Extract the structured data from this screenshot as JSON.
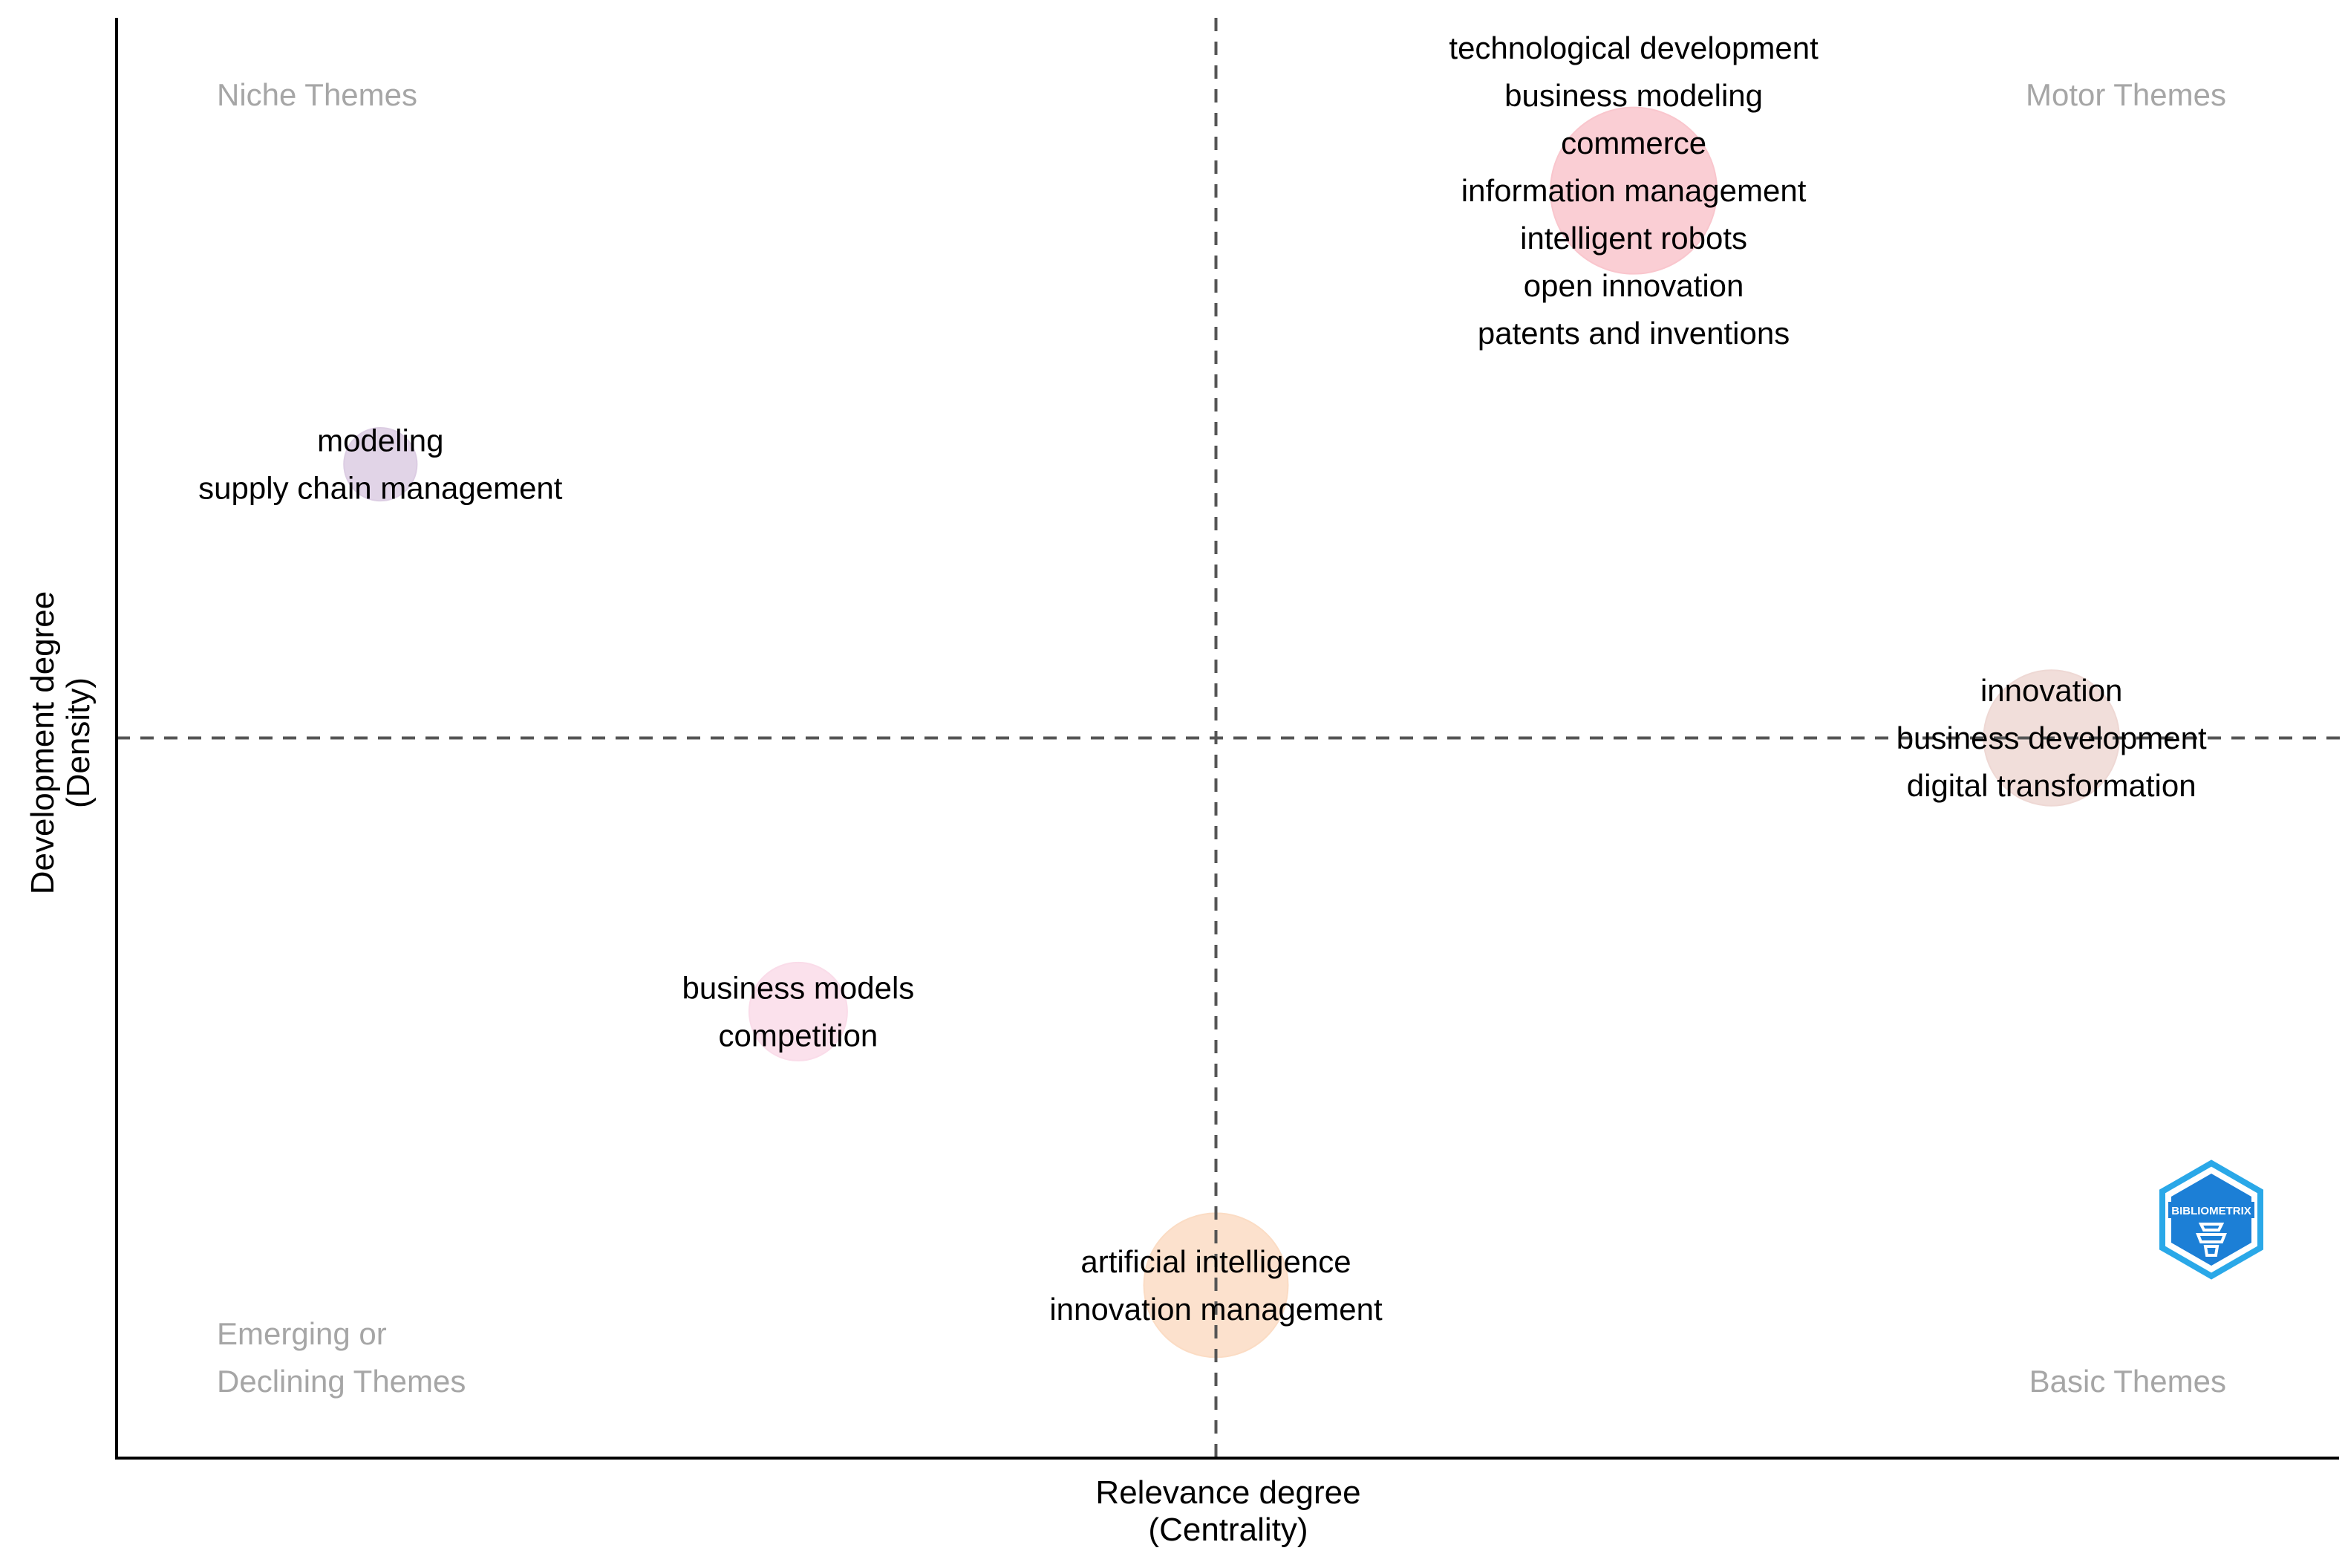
{
  "chart_data": {
    "type": "scatter",
    "title": "",
    "xlabel": "Relevance degree",
    "xlabel_sub": "(Centrality)",
    "ylabel": "Development degree",
    "ylabel_sub": "(Density)",
    "xlim": [
      0,
      1
    ],
    "ylim": [
      0,
      1
    ],
    "x_reference": 0.5,
    "y_reference": 0.5,
    "grid": false,
    "quadrants": {
      "top_left": "Niche Themes",
      "top_right": "Motor Themes",
      "bottom_left_line1": "Emerging or",
      "bottom_left_line2": "Declining Themes",
      "bottom_right": "Basic Themes"
    },
    "clusters": [
      {
        "name": "commerce",
        "x": 0.69,
        "y": 0.88,
        "size": 1.0,
        "color": "#f9c6cd",
        "labels": [
          "technological development",
          "business modeling",
          "commerce",
          "information management",
          "intelligent robots",
          "open innovation",
          "patents and inventions"
        ]
      },
      {
        "name": "modeling",
        "x": 0.12,
        "y": 0.69,
        "size": 0.1,
        "color": "#dccde3",
        "labels": [
          "modeling",
          "supply chain management"
        ]
      },
      {
        "name": "innovation",
        "x": 0.88,
        "y": 0.5,
        "size": 0.6,
        "color": "#eed8d4",
        "labels": [
          "innovation",
          "business development",
          "digital transformation"
        ]
      },
      {
        "name": "business models",
        "x": 0.31,
        "y": 0.31,
        "size": 0.25,
        "color": "#fadce9",
        "labels": [
          "business models",
          "competition"
        ]
      },
      {
        "name": "artificial intelligence",
        "x": 0.5,
        "y": 0.12,
        "size": 0.7,
        "color": "#fbdcc4",
        "labels": [
          "artificial intelligence",
          "innovation management"
        ]
      }
    ],
    "logo_text": "BIBLIOMETRIX"
  }
}
